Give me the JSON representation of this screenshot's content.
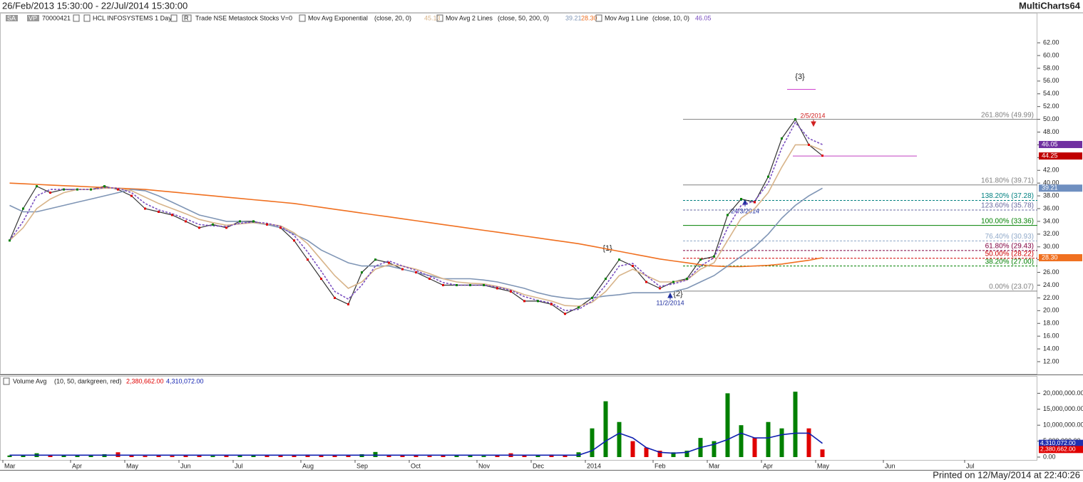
{
  "header": {
    "range": "26/Feb/2013 15:30:00 - 22/Jul/2014 15:30:00",
    "app": "MultiCharts64",
    "legend": [
      "SA",
      "VP",
      "70000421",
      "HCL INFOSYSTEMS 1 Day",
      "R",
      "Trade NSE Metastock Stocks V=0",
      "Mov Avg Exponential",
      "(close, 20, 0)",
      "45.13",
      "Mov Avg 2 Lines",
      "(close, 50, 200, 0)",
      "39.21",
      "28.30",
      "Mov Avg 1 Line",
      "(close, 10, 0)",
      "46.05"
    ],
    "volume_legend": [
      "Volume Avg",
      "(10, 50, darkgreen, red)",
      "2,380,662.00",
      "4,310,072.00"
    ]
  },
  "footer": "Printed on 12/May/2014 at 22:40:26",
  "annotations": [
    "{1}",
    "{2}",
    "{3}",
    "11/2/2014",
    "24/3/2014",
    "2/5/2014"
  ],
  "chart_data": [
    {
      "type": "line",
      "ylim": [
        10.1,
        66.7
      ],
      "yticks": [
        {
          "value": 12,
          "label": "12.00"
        },
        {
          "value": 14,
          "label": "14.00"
        },
        {
          "value": 16,
          "label": "16.00"
        },
        {
          "value": 18,
          "label": "18.00"
        },
        {
          "value": 20,
          "label": "20.00"
        },
        {
          "value": 22,
          "label": "22.00"
        },
        {
          "value": 24,
          "label": "24.00"
        },
        {
          "value": 26,
          "label": "26.00"
        },
        {
          "value": 28,
          "label": "28.00"
        },
        {
          "value": 30,
          "label": "30.00"
        },
        {
          "value": 32,
          "label": "32.00"
        },
        {
          "value": 34,
          "label": "34.00"
        },
        {
          "value": 36,
          "label": "36.00"
        },
        {
          "value": 38,
          "label": "38.00"
        },
        {
          "value": 40,
          "label": "40.00"
        },
        {
          "value": 42,
          "label": "42.00"
        },
        {
          "value": 44,
          "label": "44.00"
        },
        {
          "value": 46,
          "label": "46.00"
        },
        {
          "value": 48,
          "label": "48.00"
        },
        {
          "value": 50,
          "label": "50.00"
        },
        {
          "value": 52,
          "label": "52.00"
        },
        {
          "value": 54,
          "label": "54.00"
        },
        {
          "value": 56,
          "label": "56.00"
        },
        {
          "value": 58,
          "label": "58.00"
        },
        {
          "value": 60,
          "label": "60.00"
        },
        {
          "value": 62,
          "label": "62.00"
        }
      ],
      "series": [
        {
          "color": "#333333",
          "values": [
            31,
            36,
            39.5,
            38.5,
            39,
            39,
            39,
            39.5,
            39,
            38,
            36,
            35.5,
            35,
            34,
            33,
            33.5,
            33,
            34,
            34,
            33.5,
            33,
            31,
            28,
            25,
            22,
            21,
            26,
            28,
            27.5,
            26.5,
            26,
            25,
            24,
            24,
            24,
            24,
            23.5,
            23,
            21.5,
            21.5,
            21,
            19.5,
            20.5,
            22,
            25,
            28,
            27,
            24.5,
            23.5,
            24.5,
            25,
            28,
            28.5,
            35,
            37.5,
            37,
            41,
            47,
            50,
            46,
            44.3,
            null,
            null,
            null,
            null,
            null,
            null,
            null,
            null,
            null,
            null,
            null,
            null,
            null,
            null,
            null
          ]
        },
        {
          "color": "#f07020",
          "values": [
            40,
            39.9,
            39.8,
            39.7,
            39.6,
            39.5,
            39.4,
            39.3,
            39.2,
            39.1,
            39.0,
            38.8,
            38.6,
            38.4,
            38.2,
            38.0,
            37.8,
            37.6,
            37.4,
            37.2,
            37.0,
            36.8,
            36.5,
            36.2,
            35.9,
            35.6,
            35.3,
            35.0,
            34.7,
            34.4,
            34.1,
            33.8,
            33.5,
            33.2,
            32.9,
            32.6,
            32.3,
            32.0,
            31.7,
            31.4,
            31.1,
            30.8,
            30.5,
            30.1,
            29.7,
            29.3,
            28.9,
            28.5,
            28.1,
            27.8,
            27.5,
            27.2,
            27.0,
            26.9,
            26.9,
            27.0,
            27.1,
            27.3,
            27.6,
            27.9,
            28.3,
            null,
            null,
            null,
            null,
            null,
            null,
            null,
            null,
            null,
            null,
            null,
            null,
            null,
            null,
            null
          ]
        },
        {
          "color": "#7f95b5",
          "values": [
            36.5,
            35.5,
            35.5,
            36,
            36.5,
            37,
            37.5,
            38,
            38.5,
            39,
            38.8,
            38,
            37,
            36,
            35,
            34.5,
            34,
            34,
            33.8,
            33.5,
            33,
            32,
            31,
            29.5,
            28.5,
            27.5,
            27,
            27,
            27,
            26.5,
            26,
            25.5,
            25,
            25,
            25,
            24.8,
            24.5,
            24,
            23.5,
            22.8,
            22.3,
            22,
            21.8,
            22,
            22.3,
            22.5,
            22.8,
            22.8,
            22.8,
            23,
            23.5,
            24.5,
            25.5,
            27,
            28.5,
            30,
            32,
            34.5,
            36.5,
            38,
            39.2,
            null,
            null,
            null,
            null,
            null,
            null,
            null,
            null,
            null,
            null,
            null,
            null,
            null,
            null,
            null
          ]
        },
        {
          "color": "#d8b48a",
          "values": [
            31,
            33,
            36,
            37.5,
            38.5,
            39,
            39,
            39.2,
            39.2,
            38.8,
            37.8,
            36.8,
            36,
            35.2,
            34.3,
            33.8,
            33.4,
            33.6,
            33.8,
            33.6,
            33.3,
            32.2,
            30.5,
            28,
            25.5,
            23.5,
            24.5,
            26.5,
            27.2,
            27,
            26.5,
            25.8,
            25,
            24.5,
            24.3,
            24.2,
            23.8,
            23.3,
            22.5,
            22,
            21.5,
            20.8,
            20.7,
            21.3,
            23,
            25.5,
            26.5,
            25.5,
            24.5,
            24.5,
            24.8,
            26.5,
            27.5,
            31,
            34.5,
            36,
            38.5,
            42.5,
            46,
            46,
            45.13,
            null,
            null,
            null,
            null,
            null,
            null,
            null,
            null,
            null,
            null,
            null,
            null,
            null,
            null,
            null
          ]
        },
        {
          "color": "#7a4fc0",
          "dash": true,
          "values": [
            31,
            34,
            38,
            39,
            39,
            39,
            39,
            39.3,
            39.2,
            38.5,
            36.8,
            35.8,
            35.2,
            34.4,
            33.5,
            33.3,
            33.2,
            33.7,
            33.9,
            33.7,
            33.2,
            31.8,
            29.2,
            26.2,
            23,
            21.8,
            24,
            27,
            27.8,
            27,
            26.3,
            25.4,
            24.4,
            24,
            24,
            24,
            23.7,
            23.2,
            22.2,
            21.6,
            21.2,
            20,
            20.2,
            21.5,
            24,
            27,
            27.4,
            25.5,
            23.8,
            24.2,
            24.8,
            27,
            28.3,
            33,
            36.5,
            37.2,
            40,
            45.5,
            49.5,
            47,
            46.05,
            null,
            null,
            null,
            null,
            null,
            null,
            null,
            null,
            null,
            null,
            null,
            null,
            null,
            null,
            null
          ]
        }
      ],
      "fib_levels": [
        {
          "value": 49.99,
          "label": "261.80% (49.99)",
          "color": "#808080"
        },
        {
          "value": 39.71,
          "label": "161.80% (39.71)",
          "color": "#808080"
        },
        {
          "value": 37.28,
          "label": "138.20% (37.28)",
          "color": "#008080",
          "dash": true
        },
        {
          "value": 35.78,
          "label": "123.60% (35.78)",
          "color": "#6a6aa0",
          "dash": true
        },
        {
          "value": 33.36,
          "label": "100.00% (33.36)",
          "color": "#008000"
        },
        {
          "value": 30.93,
          "label": "76.40% (30.93)",
          "color": "#8fa8c8",
          "dash": true
        },
        {
          "value": 29.43,
          "label": "61.80% (29.43)",
          "color": "#800040",
          "dash": true
        },
        {
          "value": 28.22,
          "label": "50.00% (28.22)",
          "color": "#d00000",
          "dash": true
        },
        {
          "value": 27.0,
          "label": "38.20% (27.00)",
          "color": "#008000",
          "dash": true
        },
        {
          "value": 23.07,
          "label": "0.00% (23.07)",
          "color": "#808080"
        }
      ],
      "hlines": [
        {
          "value": 54.7,
          "color": "#d040d0"
        },
        {
          "value": 44.25,
          "color": "#c040c0"
        }
      ],
      "markers": [
        {
          "value": 46.05,
          "label": "46.05",
          "color": "#7030a0"
        },
        {
          "value": 44.25,
          "label": "44.25",
          "color": "#c00000"
        },
        {
          "value": 39.21,
          "label": "39.21",
          "color": "#6f8fc0"
        },
        {
          "value": 28.3,
          "label": "28.30",
          "color": "#f07020"
        }
      ]
    },
    {
      "type": "bar",
      "categories": [
        "Mar",
        null,
        null,
        null,
        null,
        "Apr",
        null,
        null,
        null,
        "May",
        null,
        null,
        null,
        "Jun",
        null,
        null,
        null,
        "Jul",
        null,
        null,
        null,
        null,
        "Aug",
        null,
        null,
        null,
        "Sep",
        null,
        null,
        null,
        "Oct",
        null,
        null,
        null,
        null,
        "Nov",
        null,
        null,
        null,
        "Dec",
        null,
        null,
        null,
        "2014",
        null,
        null,
        null,
        null,
        "Feb",
        null,
        null,
        null,
        "Mar",
        null,
        null,
        null,
        "Apr",
        null,
        null,
        null,
        "May",
        null,
        null,
        null,
        null,
        "Jun",
        null,
        null,
        null,
        null,
        null,
        "Jul",
        null,
        null,
        null,
        null
      ],
      "ylim": [
        0,
        25000000
      ],
      "yticks": [
        {
          "value": 0,
          "label": "0.00"
        },
        {
          "value": 5000000,
          "label": "5,000,000.00"
        },
        {
          "value": 10000000,
          "label": "10,000,000.00"
        },
        {
          "value": 15000000,
          "label": "15,000,000.00"
        },
        {
          "value": 20000000,
          "label": "20,000,000.00"
        }
      ],
      "colors": [
        "#008000",
        "#e00000"
      ],
      "values": [
        500000,
        700000,
        1200000,
        600000,
        500000,
        600000,
        500000,
        900000,
        1500000,
        500000,
        400000,
        500000,
        400000,
        600000,
        500000,
        400000,
        500000,
        700000,
        600000,
        500000,
        600000,
        500000,
        800000,
        700000,
        600000,
        500000,
        900000,
        1600000,
        700000,
        600000,
        500000,
        400000,
        500000,
        600000,
        500000,
        400000,
        500000,
        1200000,
        600000,
        500000,
        800000,
        700000,
        1500000,
        9000000,
        17500000,
        11000000,
        5000000,
        3000000,
        2000000,
        1500000,
        2000000,
        6000000,
        5000000,
        20000000,
        10000000,
        6000000,
        11000000,
        9000000,
        20500000,
        9000000,
        2400000,
        null,
        null,
        null,
        null,
        null,
        null,
        null,
        null,
        null,
        null,
        null,
        null,
        null,
        null,
        null
      ],
      "avg": {
        "color": "#1020b0",
        "values": [
          600000,
          600000,
          600000,
          600000,
          600000,
          600000,
          600000,
          600000,
          600000,
          600000,
          600000,
          600000,
          600000,
          600000,
          600000,
          600000,
          600000,
          600000,
          600000,
          600000,
          600000,
          600000,
          600000,
          600000,
          600000,
          600000,
          600000,
          600000,
          600000,
          600000,
          600000,
          600000,
          600000,
          600000,
          600000,
          600000,
          600000,
          600000,
          600000,
          600000,
          600000,
          600000,
          600000,
          2000000,
          5000000,
          7500000,
          6000000,
          3000000,
          1500000,
          1200000,
          1500000,
          3000000,
          4000000,
          5500000,
          7500000,
          6000000,
          6000000,
          7000000,
          7500000,
          7500000,
          4310072,
          null,
          null,
          null,
          null,
          null,
          null,
          null,
          null,
          null,
          null,
          null,
          null,
          null,
          null,
          null
        ]
      },
      "markers": [
        {
          "value": 4310072,
          "label": "4,310,072.00",
          "color": "#1f2fb0"
        },
        {
          "value": 2380662,
          "label": "2,380,662.00",
          "color": "#e00000"
        }
      ]
    }
  ]
}
